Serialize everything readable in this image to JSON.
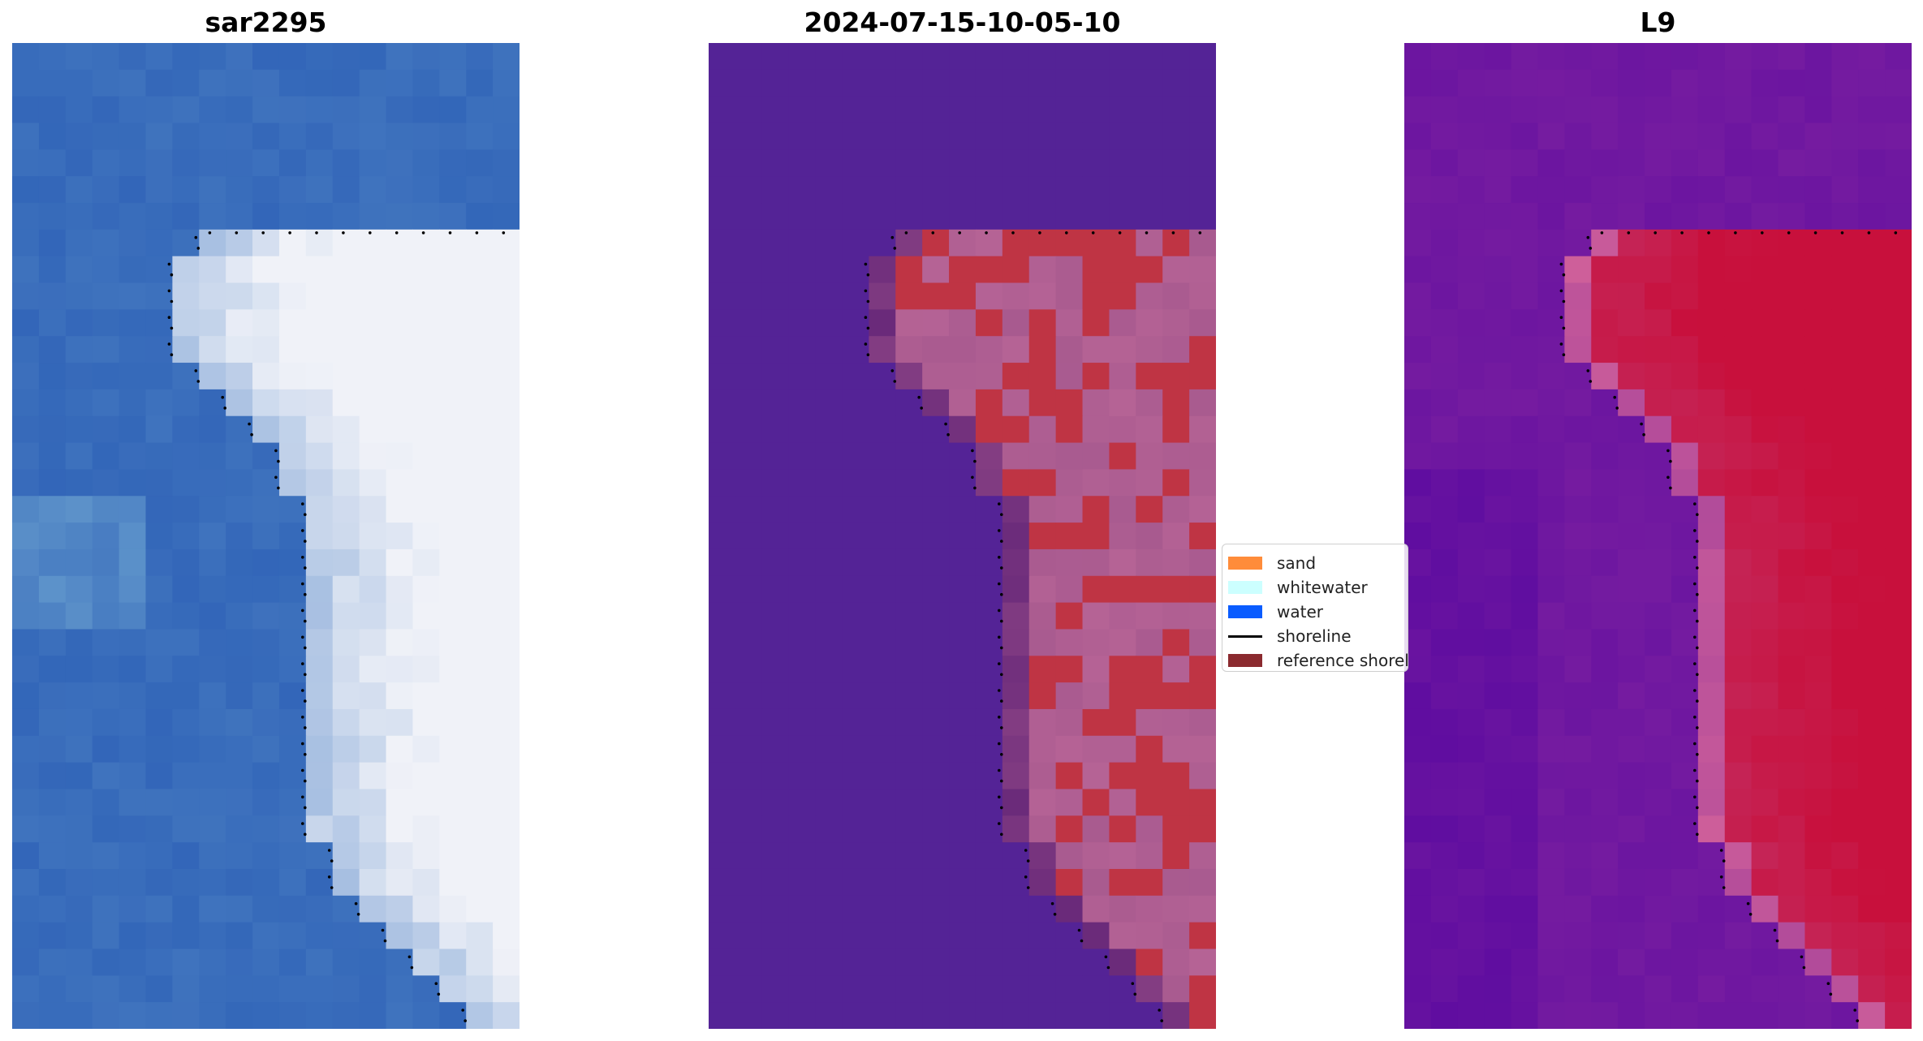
{
  "panels": [
    {
      "title": "sar2295",
      "colormap": "sar-rgb"
    },
    {
      "title": "2024-07-15-10-05-10",
      "colormap": "classified"
    },
    {
      "title": "L9",
      "colormap": "index-magenta"
    }
  ],
  "legend": {
    "items": [
      {
        "label": "sand",
        "color": "#ff8c3a",
        "kind": "patch"
      },
      {
        "label": "whitewater",
        "color": "#ccffff",
        "kind": "patch"
      },
      {
        "label": "water",
        "color": "#0a5cff",
        "kind": "patch"
      },
      {
        "label": "shoreline",
        "color": "#000000",
        "kind": "line"
      },
      {
        "label": "reference shoreline",
        "color": "#8b2a2f",
        "kind": "patch"
      }
    ]
  },
  "colors": {
    "water_rgb": "#2a5db5",
    "whitewater_rgb": "#f0f2f8",
    "classified_water": "#542396",
    "classified_land": "#bf3444",
    "classified_mixed": "#a85a8f",
    "index_low": "#5b0aa0",
    "index_high": "#c8103c",
    "shoreline_dots": "#000000"
  }
}
